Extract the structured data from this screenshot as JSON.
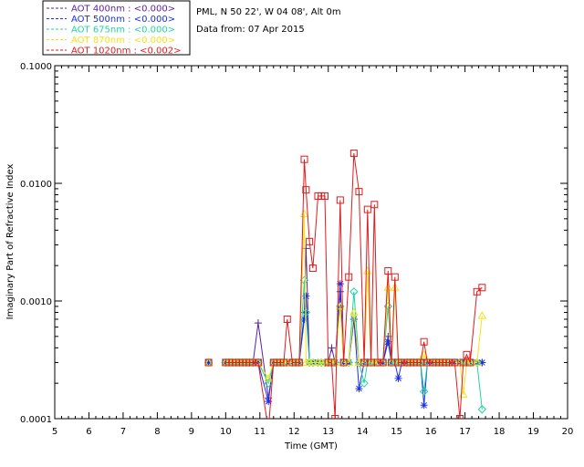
{
  "header": {
    "location": "PML, N 50 22', W 04 08', Alt 0m",
    "date": "Data from: 07 Apr 2015"
  },
  "chart_data": {
    "type": "line",
    "title": "",
    "xlabel": "Time (GMT)",
    "ylabel": "Imaginary Part of Refractive Index",
    "xlim": [
      5,
      20
    ],
    "ylim": [
      0.0001,
      0.1
    ],
    "yscale": "log",
    "grid": false,
    "legend_position": "top-left",
    "x_ticks": [
      "5",
      "6",
      "7",
      "8",
      "9",
      "10",
      "11",
      "12",
      "13",
      "14",
      "15",
      "16",
      "17",
      "18",
      "19",
      "20"
    ],
    "y_ticks": [
      "0.0001",
      "0.0010",
      "0.0100",
      "0.1000"
    ],
    "series": [
      {
        "name": "AOT 400nm : <0.000>",
        "color": "#5a1fa6",
        "marker": "plus",
        "x": [
          9.5,
          10.0,
          10.1,
          10.2,
          10.3,
          10.4,
          10.5,
          10.6,
          10.7,
          10.8,
          10.95,
          11.25,
          11.4,
          11.5,
          11.6,
          11.7,
          11.8,
          11.95,
          12.05,
          12.15,
          12.3,
          12.35,
          12.45,
          12.55,
          12.7,
          12.8,
          12.9,
          13.0,
          13.1,
          13.2,
          13.35,
          13.45,
          13.6,
          13.75,
          13.9,
          14.05,
          14.15,
          14.25,
          14.35,
          14.45,
          14.6,
          14.75,
          14.85,
          14.95,
          15.05,
          15.15,
          15.3,
          15.4,
          15.5,
          15.6,
          15.7,
          15.8,
          15.9,
          16.05,
          16.15,
          16.25,
          16.35,
          16.45,
          16.55,
          16.7,
          16.85,
          16.95,
          17.05,
          17.15,
          17.35,
          17.5
        ],
        "values": [
          0.0003,
          0.0003,
          0.0003,
          0.0003,
          0.0003,
          0.0003,
          0.0003,
          0.0003,
          0.0003,
          0.0003,
          0.00065,
          0.00015,
          0.0003,
          0.0003,
          0.0003,
          0.0003,
          0.0003,
          0.0003,
          0.0003,
          0.0003,
          0.0008,
          0.0028,
          0.0003,
          0.0003,
          0.0003,
          0.0003,
          0.0003,
          0.0003,
          0.0004,
          0.0003,
          0.0012,
          0.0003,
          0.0003,
          0.0007,
          0.0003,
          0.0003,
          0.0003,
          0.0003,
          0.0003,
          0.0003,
          0.0003,
          0.0005,
          0.0003,
          0.0003,
          0.0003,
          0.0003,
          0.0003,
          0.0003,
          0.0003,
          0.0003,
          0.0003,
          0.0003,
          0.0003,
          0.0003,
          0.0003,
          0.0003,
          0.0003,
          0.0003,
          0.0003,
          0.0003,
          0.0003,
          0.0003,
          0.0003,
          0.0003,
          0.0003,
          0.0003
        ]
      },
      {
        "name": "AOT 500nm : <0.000>",
        "color": "#1a2ee6",
        "marker": "asterisk",
        "x": [
          9.5,
          10.0,
          10.1,
          10.2,
          10.3,
          10.4,
          10.5,
          10.6,
          10.7,
          10.8,
          10.95,
          11.25,
          11.4,
          11.5,
          11.6,
          11.7,
          11.8,
          11.95,
          12.05,
          12.15,
          12.3,
          12.35,
          12.45,
          12.55,
          12.7,
          12.8,
          12.9,
          13.0,
          13.1,
          13.2,
          13.35,
          13.45,
          13.6,
          13.75,
          13.9,
          14.05,
          14.15,
          14.25,
          14.35,
          14.45,
          14.6,
          14.75,
          14.85,
          14.95,
          15.05,
          15.15,
          15.3,
          15.4,
          15.5,
          15.6,
          15.7,
          15.8,
          15.9,
          16.05,
          16.15,
          16.25,
          16.35,
          16.45,
          16.55,
          16.7,
          16.85,
          16.95,
          17.05,
          17.15,
          17.35,
          17.5
        ],
        "values": [
          0.0003,
          0.0003,
          0.0003,
          0.0003,
          0.0003,
          0.0003,
          0.0003,
          0.0003,
          0.0003,
          0.0003,
          0.0003,
          0.00014,
          0.0003,
          0.0003,
          0.0003,
          0.0003,
          0.0003,
          0.0003,
          0.0003,
          0.0003,
          0.0007,
          0.0011,
          0.0003,
          0.0003,
          0.0003,
          0.0003,
          0.0003,
          0.0003,
          0.0003,
          0.0003,
          0.0014,
          0.0003,
          0.0003,
          0.0007,
          0.00018,
          0.0003,
          0.0003,
          0.0003,
          0.0003,
          0.0003,
          0.0003,
          0.00045,
          0.0003,
          0.0003,
          0.00022,
          0.0003,
          0.0003,
          0.0003,
          0.0003,
          0.0003,
          0.0003,
          0.00013,
          0.0003,
          0.0003,
          0.0003,
          0.0003,
          0.0003,
          0.0003,
          0.0003,
          0.0003,
          0.0003,
          0.0003,
          0.0003,
          0.0003,
          0.0003,
          0.0003
        ]
      },
      {
        "name": "AOT 675nm : <0.000>",
        "color": "#1fd6a0",
        "marker": "diamond",
        "x": [
          9.5,
          10.0,
          10.1,
          10.2,
          10.3,
          10.4,
          10.5,
          10.6,
          10.7,
          10.8,
          10.95,
          11.25,
          11.4,
          11.5,
          11.6,
          11.7,
          11.8,
          11.95,
          12.05,
          12.15,
          12.3,
          12.35,
          12.45,
          12.55,
          12.7,
          12.8,
          12.9,
          13.0,
          13.1,
          13.2,
          13.35,
          13.45,
          13.6,
          13.75,
          13.9,
          14.05,
          14.15,
          14.25,
          14.35,
          14.45,
          14.6,
          14.75,
          14.85,
          14.95,
          15.05,
          15.15,
          15.3,
          15.4,
          15.5,
          15.6,
          15.7,
          15.8,
          15.9,
          16.05,
          16.15,
          16.25,
          16.35,
          16.45,
          16.55,
          16.7,
          16.85,
          16.95,
          17.05,
          17.15,
          17.35,
          17.5
        ],
        "values": [
          0.0003,
          0.0003,
          0.0003,
          0.0003,
          0.0003,
          0.0003,
          0.0003,
          0.0003,
          0.0003,
          0.0003,
          0.0003,
          0.0002,
          0.0003,
          0.0003,
          0.0003,
          0.0003,
          0.0003,
          0.0003,
          0.0003,
          0.0003,
          0.0015,
          0.0008,
          0.0003,
          0.0003,
          0.0003,
          0.0003,
          0.0003,
          0.0003,
          0.0003,
          0.0003,
          0.0009,
          0.0003,
          0.0003,
          0.0012,
          0.0003,
          0.0002,
          0.0003,
          0.0003,
          0.0003,
          0.0003,
          0.0003,
          0.0009,
          0.0003,
          0.0003,
          0.0003,
          0.0003,
          0.0003,
          0.0003,
          0.0003,
          0.0003,
          0.0003,
          0.00017,
          0.0003,
          0.0003,
          0.0003,
          0.0003,
          0.0003,
          0.0003,
          0.0003,
          0.0003,
          0.0003,
          0.0003,
          0.0003,
          0.0003,
          0.0003,
          0.00012
        ]
      },
      {
        "name": "AOT 870nm : <0.000>",
        "color": "#f5e21a",
        "marker": "triangle",
        "x": [
          9.5,
          10.0,
          10.1,
          10.2,
          10.3,
          10.4,
          10.5,
          10.6,
          10.7,
          10.8,
          10.95,
          11.25,
          11.4,
          11.5,
          11.6,
          11.7,
          11.8,
          11.95,
          12.05,
          12.15,
          12.3,
          12.35,
          12.45,
          12.55,
          12.7,
          12.8,
          12.9,
          13.0,
          13.1,
          13.2,
          13.35,
          13.45,
          13.6,
          13.75,
          13.9,
          14.05,
          14.15,
          14.25,
          14.35,
          14.45,
          14.6,
          14.75,
          14.85,
          14.95,
          15.05,
          15.15,
          15.3,
          15.4,
          15.5,
          15.6,
          15.7,
          15.8,
          15.9,
          16.05,
          16.15,
          16.25,
          16.35,
          16.45,
          16.55,
          16.7,
          16.85,
          16.95,
          17.05,
          17.15,
          17.35,
          17.5
        ],
        "values": [
          0.0003,
          0.0003,
          0.0003,
          0.0003,
          0.0003,
          0.0003,
          0.0003,
          0.0003,
          0.0003,
          0.0003,
          0.0003,
          0.00022,
          0.0003,
          0.0003,
          0.0003,
          0.0003,
          0.0003,
          0.0003,
          0.0003,
          0.0003,
          0.0055,
          0.0003,
          0.0003,
          0.0003,
          0.0003,
          0.0003,
          0.0003,
          0.0003,
          0.0003,
          0.0003,
          0.0009,
          0.0003,
          0.0003,
          0.0008,
          0.0003,
          0.0003,
          0.0018,
          0.0003,
          0.0003,
          0.0003,
          0.0003,
          0.0013,
          0.0003,
          0.0013,
          0.0003,
          0.0003,
          0.0003,
          0.0003,
          0.0003,
          0.0003,
          0.0003,
          0.00035,
          0.0003,
          0.0003,
          0.0003,
          0.0003,
          0.0003,
          0.0003,
          0.0003,
          0.0003,
          0.0003,
          0.00016,
          0.0003,
          0.0003,
          0.0003,
          0.00075
        ]
      },
      {
        "name": "AOT 1020nm : <0.002>",
        "color": "#e31a1c",
        "marker": "square",
        "x": [
          9.5,
          10.0,
          10.1,
          10.2,
          10.3,
          10.4,
          10.5,
          10.6,
          10.7,
          10.8,
          10.95,
          11.25,
          11.4,
          11.5,
          11.6,
          11.7,
          11.8,
          11.95,
          12.05,
          12.15,
          12.3,
          12.35,
          12.45,
          12.55,
          12.7,
          12.8,
          12.9,
          13.0,
          13.1,
          13.2,
          13.35,
          13.45,
          13.6,
          13.75,
          13.9,
          14.05,
          14.15,
          14.25,
          14.35,
          14.45,
          14.6,
          14.75,
          14.85,
          14.95,
          15.05,
          15.15,
          15.3,
          15.4,
          15.5,
          15.6,
          15.7,
          15.8,
          15.9,
          16.05,
          16.15,
          16.25,
          16.35,
          16.45,
          16.55,
          16.7,
          16.85,
          16.95,
          17.05,
          17.15,
          17.35,
          17.5
        ],
        "values": [
          0.0003,
          0.0003,
          0.0003,
          0.0003,
          0.0003,
          0.0003,
          0.0003,
          0.0003,
          0.0003,
          0.0003,
          0.0003,
          8e-05,
          0.0003,
          0.0003,
          0.0003,
          0.0003,
          0.0007,
          0.0003,
          0.0003,
          0.0003,
          0.016,
          0.0088,
          0.0032,
          0.0019,
          0.0078,
          0.0078,
          0.0078,
          0.0003,
          0.0003,
          0.0001,
          0.0072,
          0.0003,
          0.0016,
          0.018,
          0.0085,
          0.0003,
          0.006,
          0.0003,
          0.0066,
          0.0003,
          0.0003,
          0.0018,
          0.0003,
          0.0016,
          0.0003,
          0.0003,
          0.0003,
          0.0003,
          0.0003,
          0.0003,
          0.0003,
          0.00045,
          0.0003,
          0.0003,
          0.0003,
          0.0003,
          0.0003,
          0.0003,
          0.0003,
          0.0003,
          0.0001,
          0.0003,
          0.00035,
          0.0003,
          0.0012,
          0.0013
        ]
      }
    ]
  }
}
